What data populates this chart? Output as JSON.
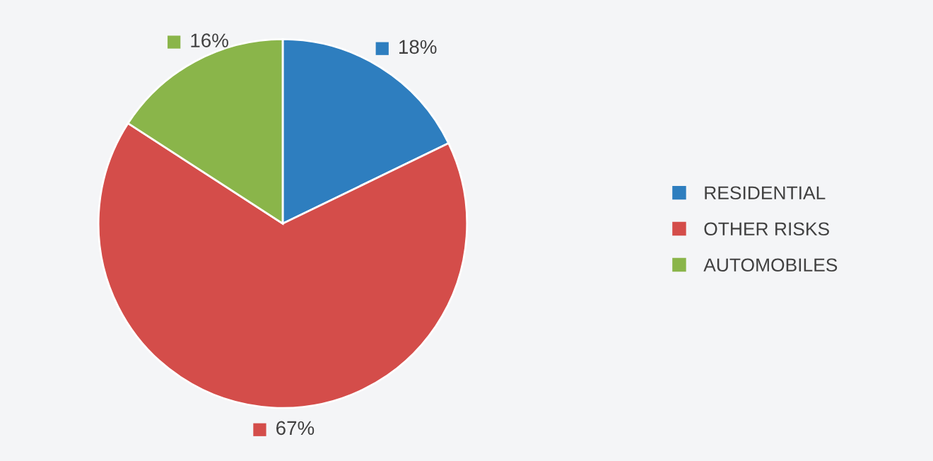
{
  "chart_data": {
    "type": "pie",
    "categories": [
      "RESIDENTIAL",
      "OTHER RISKS",
      "AUTOMOBILES"
    ],
    "values": [
      18,
      67,
      16
    ],
    "colors": [
      "#2e7ebf",
      "#d44d4a",
      "#8ab54a"
    ],
    "value_labels": [
      "18%",
      "67%",
      "16%"
    ],
    "legend": "right"
  }
}
